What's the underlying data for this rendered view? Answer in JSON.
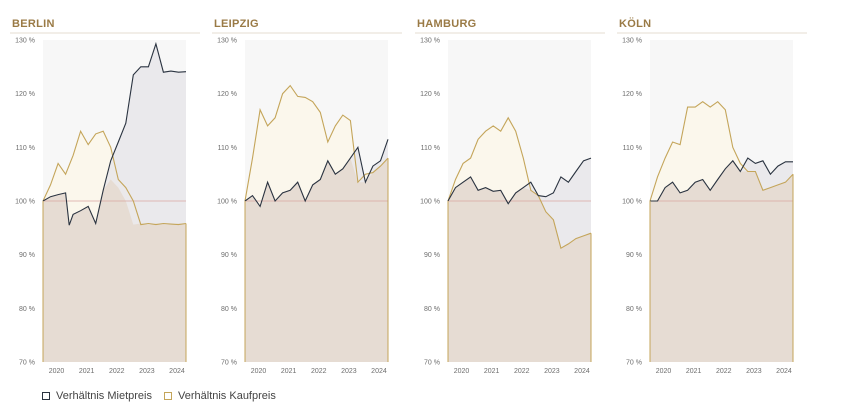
{
  "colors": {
    "title": "#9a7a45",
    "rent_line": "#2a3340",
    "rent_fill": "#e8e6ea",
    "buy_line": "#c4a55a",
    "buy_fill": "#fbf7ec",
    "base_fill": "#e6dcd3",
    "baseline": "#d8a6a0",
    "panel_bg": "#f7f7f7"
  },
  "legend": [
    {
      "label": "Verhältnis Mietpreis",
      "color": "#2a3340"
    },
    {
      "label": "Verhältnis Kaufpreis",
      "color": "#c4a55a"
    }
  ],
  "chart_data": [
    {
      "type": "area",
      "title": "BERLIN",
      "x_ticks": [
        "2020",
        "2021",
        "2022",
        "2023",
        "2024"
      ],
      "y_ticks": [
        "130 %",
        "120 %",
        "110 %",
        "100 %",
        "90 %",
        "80 %",
        "70 %"
      ],
      "ylim": [
        70,
        130
      ],
      "xlim": [
        2019.75,
        2024.5
      ],
      "baseline": 100,
      "series": [
        {
          "name": "Verhältnis Mietpreis",
          "x": [
            2019.75,
            2020.0,
            2020.25,
            2020.5,
            2020.62,
            2020.75,
            2021.0,
            2021.25,
            2021.5,
            2021.75,
            2022.0,
            2022.25,
            2022.5,
            2022.75,
            2023.0,
            2023.25,
            2023.5,
            2023.75,
            2024.0,
            2024.25,
            2024.5
          ],
          "values": [
            100,
            100.8,
            101.2,
            101.5,
            95.5,
            97.5,
            98.2,
            99,
            95.8,
            102,
            107.5,
            111,
            114.5,
            123.5,
            125,
            125,
            129.3,
            124,
            124.2,
            124,
            124.1
          ]
        },
        {
          "name": "Verhältnis Kaufpreis",
          "x": [
            2019.75,
            2020.0,
            2020.25,
            2020.5,
            2020.75,
            2021.0,
            2021.25,
            2021.5,
            2021.75,
            2022.0,
            2022.25,
            2022.5,
            2022.75,
            2023.0,
            2023.25,
            2023.5,
            2023.75,
            2024.0,
            2024.25,
            2024.5
          ],
          "values": [
            100,
            103,
            107,
            105,
            108.5,
            113,
            110.5,
            112.5,
            113,
            110,
            104,
            102.5,
            100,
            95.6,
            95.8,
            95.6,
            95.8,
            95.7,
            95.6,
            95.8
          ]
        }
      ]
    },
    {
      "type": "area",
      "title": "LEIPZIG",
      "x_ticks": [
        "2020",
        "2021",
        "2022",
        "2023",
        "2024"
      ],
      "y_ticks": [
        "130 %",
        "120 %",
        "110 %",
        "100 %",
        "90 %",
        "80 %",
        "70 %"
      ],
      "ylim": [
        70,
        130
      ],
      "xlim": [
        2019.75,
        2024.5
      ],
      "baseline": 100,
      "series": [
        {
          "name": "Verhältnis Mietpreis",
          "x": [
            2019.75,
            2020.0,
            2020.25,
            2020.5,
            2020.75,
            2021.0,
            2021.25,
            2021.5,
            2021.75,
            2022.0,
            2022.25,
            2022.5,
            2022.75,
            2023.0,
            2023.25,
            2023.5,
            2023.75,
            2024.0,
            2024.25,
            2024.5
          ],
          "values": [
            100,
            101,
            99,
            103.5,
            100,
            101.5,
            102,
            103.5,
            100,
            103,
            104,
            107.5,
            105,
            106,
            108,
            110,
            103.5,
            106.5,
            107.5,
            111.5
          ]
        },
        {
          "name": "Verhältnis Kaufpreis",
          "x": [
            2019.75,
            2020.0,
            2020.25,
            2020.5,
            2020.75,
            2021.0,
            2021.25,
            2021.5,
            2021.75,
            2022.0,
            2022.25,
            2022.5,
            2022.75,
            2023.0,
            2023.25,
            2023.5,
            2023.75,
            2024.0,
            2024.25,
            2024.5
          ],
          "values": [
            100,
            108,
            117,
            114,
            115.5,
            120,
            121.5,
            119.5,
            119.3,
            118.5,
            116.5,
            111,
            114,
            116,
            115,
            103.5,
            105,
            105.3,
            106.5,
            108
          ]
        }
      ]
    },
    {
      "type": "area",
      "title": "HAMBURG",
      "x_ticks": [
        "2020",
        "2021",
        "2022",
        "2023",
        "2024"
      ],
      "y_ticks": [
        "130 %",
        "120 %",
        "110 %",
        "100 %",
        "90 %",
        "80 %",
        "70 %"
      ],
      "ylim": [
        70,
        130
      ],
      "xlim": [
        2019.75,
        2024.5
      ],
      "baseline": 100,
      "series": [
        {
          "name": "Verhältnis Mietpreis",
          "x": [
            2019.75,
            2020.0,
            2020.25,
            2020.5,
            2020.75,
            2021.0,
            2021.25,
            2021.5,
            2021.75,
            2022.0,
            2022.25,
            2022.5,
            2022.75,
            2023.0,
            2023.25,
            2023.5,
            2023.75,
            2024.0,
            2024.25,
            2024.5
          ],
          "values": [
            100,
            102.5,
            103.5,
            104.5,
            102,
            102.5,
            101.8,
            102,
            99.5,
            101.5,
            102.5,
            103.5,
            101,
            100.8,
            101.5,
            104.5,
            103.5,
            105.5,
            107.5,
            108
          ]
        },
        {
          "name": "Verhältnis Kaufpreis",
          "x": [
            2019.75,
            2020.0,
            2020.25,
            2020.5,
            2020.75,
            2021.0,
            2021.25,
            2021.5,
            2021.75,
            2022.0,
            2022.25,
            2022.5,
            2022.75,
            2023.0,
            2023.25,
            2023.5,
            2023.75,
            2024.0,
            2024.25,
            2024.5
          ],
          "values": [
            100,
            104,
            107,
            108,
            111.5,
            113,
            114,
            113,
            115.5,
            113,
            108,
            102,
            101,
            98,
            96.5,
            91.2,
            92,
            93,
            93.5,
            94
          ]
        }
      ]
    },
    {
      "type": "area",
      "title": "KÖLN",
      "x_ticks": [
        "2020",
        "2021",
        "2022",
        "2023",
        "2024"
      ],
      "y_ticks": [
        "130 %",
        "120 %",
        "110 %",
        "100 %",
        "90 %",
        "80 %",
        "70 %"
      ],
      "ylim": [
        70,
        130
      ],
      "xlim": [
        2019.75,
        2024.5
      ],
      "baseline": 100,
      "series": [
        {
          "name": "Verhältnis Mietpreis",
          "x": [
            2019.75,
            2020.0,
            2020.25,
            2020.5,
            2020.75,
            2021.0,
            2021.25,
            2021.5,
            2021.75,
            2022.0,
            2022.25,
            2022.5,
            2022.75,
            2023.0,
            2023.25,
            2023.5,
            2023.75,
            2024.0,
            2024.25,
            2024.5
          ],
          "values": [
            100,
            100,
            102.5,
            103.5,
            101.5,
            102,
            103.5,
            104,
            102,
            104,
            106,
            107.5,
            105.5,
            108,
            107,
            107.5,
            105,
            106.5,
            107.3,
            107.3
          ]
        },
        {
          "name": "Verhältnis Kaufpreis",
          "x": [
            2019.75,
            2020.0,
            2020.25,
            2020.5,
            2020.75,
            2021.0,
            2021.25,
            2021.5,
            2021.75,
            2022.0,
            2022.25,
            2022.5,
            2022.75,
            2023.0,
            2023.25,
            2023.5,
            2023.75,
            2024.0,
            2024.25,
            2024.5
          ],
          "values": [
            100,
            104.5,
            108,
            111,
            110.5,
            117.5,
            117.5,
            118.5,
            117.5,
            118.5,
            117,
            110,
            107,
            105.5,
            105.5,
            102,
            102.5,
            103,
            103.5,
            105
          ]
        }
      ]
    }
  ]
}
